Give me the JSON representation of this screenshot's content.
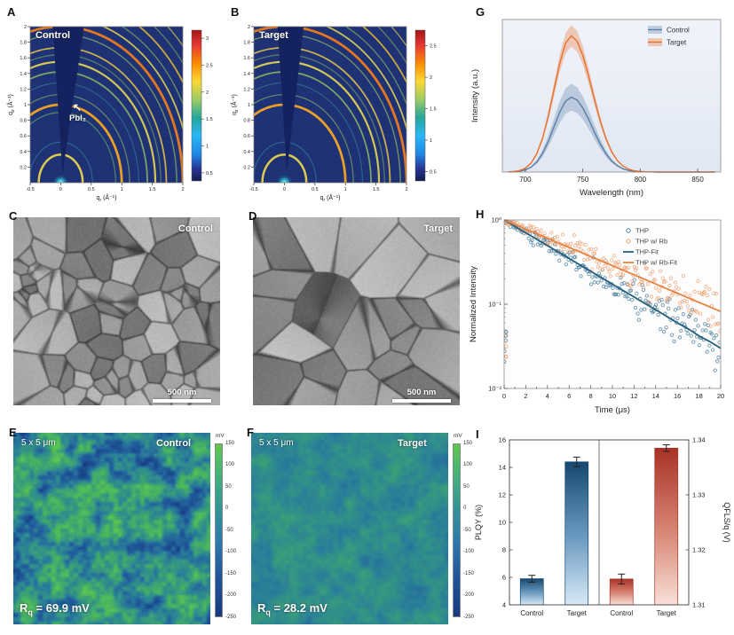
{
  "panelA": {
    "letter": "A",
    "sample_label": "Control",
    "annotation": "PbI₂",
    "axis": {
      "xlabel": {
        "main": "q",
        "sub": "r",
        "unit": " (Å⁻¹)"
      },
      "ylabel": {
        "main": "q",
        "sub": "z",
        "unit": " (Å⁻¹)"
      },
      "xticks": [
        -0.5,
        0,
        0.5,
        1,
        1.5,
        2
      ],
      "yticks": [
        0.2,
        0.4,
        0.6,
        0.8,
        1,
        1.2,
        1.4,
        1.6,
        1.8,
        2
      ]
    },
    "colorbar": {
      "ticks": [
        0.5,
        1,
        1.5,
        2,
        2.5,
        3
      ],
      "vmin": 0.35,
      "vmax": 3.15
    }
  },
  "panelB": {
    "letter": "B",
    "sample_label": "Target",
    "axis": {
      "xlabel": {
        "main": "q",
        "sub": "r",
        "unit": " (Å⁻¹)"
      },
      "ylabel": {
        "main": "q",
        "sub": "z",
        "unit": " (Å⁻¹)"
      },
      "xticks": [
        -0.5,
        0,
        0.5,
        1,
        1.5,
        2
      ],
      "yticks": [
        0.2,
        0.4,
        0.6,
        0.8,
        1,
        1.2,
        1.4,
        1.6,
        1.8,
        2
      ]
    },
    "colorbar": {
      "ticks": [
        0.5,
        1,
        1.5,
        2,
        2.5
      ],
      "vmin": 0.35,
      "vmax": 2.75
    }
  },
  "panelC": {
    "letter": "C",
    "sample_label": "Control",
    "scalebar": "500 nm"
  },
  "panelD": {
    "letter": "D",
    "sample_label": "Target",
    "scalebar": "500 nm"
  },
  "panelE": {
    "letter": "E",
    "size_label": "5 x 5 μm",
    "sample_label": "Control",
    "rq": {
      "prefix": "R",
      "sub": "q",
      "value": " = 69.9 mV"
    },
    "colorbar": {
      "unit": "mV",
      "ticks": [
        150,
        100,
        50,
        0,
        -50,
        -100,
        -150,
        -200,
        -250
      ],
      "vmax": 150,
      "vmin": -250
    }
  },
  "panelF": {
    "letter": "F",
    "size_label": "5 x 5 μm",
    "sample_label": "Target",
    "rq": {
      "prefix": "R",
      "sub": "q",
      "value": " = 28.2 mV"
    },
    "colorbar": {
      "unit": "mV",
      "ticks": [
        150,
        100,
        50,
        0,
        -50,
        -100,
        -150,
        -200,
        -250
      ],
      "vmax": 150,
      "vmin": -250
    }
  },
  "panelG": {
    "letter": "G"
  },
  "panelH": {
    "letter": "H"
  },
  "panelI": {
    "letter": "I"
  },
  "giwaxs": {
    "bg": "#18276b",
    "wedge_color": "#152260",
    "wedgeA": [
      [
        -0.14,
        2.1
      ],
      [
        0.03,
        0.12
      ],
      [
        0.4,
        2.1
      ]
    ],
    "wedgeB": [
      [
        -0.12,
        2.1
      ],
      [
        0.04,
        0.14
      ],
      [
        0.33,
        2.1
      ]
    ],
    "rings": [
      {
        "r": 0.36,
        "c": "#e8d44d",
        "w": 2.5,
        "o": 0.95
      },
      {
        "r": 0.52,
        "c": "#3fb5a3",
        "w": 1.2,
        "o": 0.4
      },
      {
        "r": 0.9,
        "c": "#7ec15f",
        "w": 1.3,
        "o": 0.55,
        "pbi2": true
      },
      {
        "r": 1.0,
        "c": "#f5a623",
        "w": 2.8,
        "o": 0.95
      },
      {
        "r": 1.13,
        "c": "#8fc45e",
        "w": 1.4,
        "o": 0.55
      },
      {
        "r": 1.28,
        "c": "#3fae9b",
        "w": 1.2,
        "o": 0.4
      },
      {
        "r": 1.42,
        "c": "#a9d05c",
        "w": 1.8,
        "o": 0.7
      },
      {
        "r": 1.55,
        "c": "#f2e34f",
        "w": 2.2,
        "o": 0.85
      },
      {
        "r": 1.64,
        "c": "#8fc45e",
        "w": 1.3,
        "o": 0.5
      },
      {
        "r": 1.73,
        "c": "#f4cf45",
        "w": 1.8,
        "o": 0.8
      },
      {
        "r": 1.9,
        "c": "#a9d05c",
        "w": 1.4,
        "o": 0.6
      },
      {
        "r": 2.0,
        "c": "#ef7c1a",
        "w": 2.8,
        "o": 0.95
      },
      {
        "r": 2.12,
        "c": "#f2e34f",
        "w": 1.8,
        "o": 0.8
      },
      {
        "r": 2.24,
        "c": "#8fc45e",
        "w": 1.4,
        "o": 0.6
      },
      {
        "r": 2.38,
        "c": "#f4c430",
        "w": 1.8,
        "o": 0.8
      },
      {
        "r": 2.52,
        "c": "#a9d05c",
        "w": 1.3,
        "o": 0.5
      },
      {
        "r": 2.66,
        "c": "#f2e34f",
        "w": 1.4,
        "o": 0.6
      }
    ]
  },
  "chart_data": [
    {
      "id": "pl_spectra",
      "type": "line",
      "xlabel": "Wavelength (nm)",
      "ylabel": "Intensity (a.u.)",
      "xlim": [
        680,
        870
      ],
      "ylim": [
        0,
        1.12
      ],
      "xticks": [
        700,
        750,
        800,
        850
      ],
      "legend_position": "top-right",
      "x": [
        685,
        690,
        695,
        700,
        705,
        710,
        715,
        720,
        725,
        730,
        735,
        740,
        745,
        750,
        755,
        760,
        765,
        770,
        775,
        780,
        785,
        790,
        795,
        800,
        805,
        810,
        815,
        820,
        825,
        830,
        835,
        840,
        845,
        850,
        855,
        860,
        865
      ],
      "series": [
        {
          "name": "Control",
          "color": "#5b7ea6",
          "band": 0.18,
          "values": [
            0.001,
            0.002,
            0.006,
            0.016,
            0.036,
            0.074,
            0.137,
            0.226,
            0.334,
            0.441,
            0.52,
            0.55,
            0.529,
            0.471,
            0.389,
            0.296,
            0.21,
            0.137,
            0.083,
            0.047,
            0.024,
            0.012,
            0.005,
            0.002,
            0.001,
            0.001,
            0,
            0,
            0,
            0,
            0,
            0,
            0,
            0,
            0,
            0,
            0
          ]
        },
        {
          "name": "Target",
          "color": "#e8702a",
          "band": 0.08,
          "values": [
            0.001,
            0.004,
            0.011,
            0.029,
            0.066,
            0.135,
            0.249,
            0.411,
            0.607,
            0.801,
            0.946,
            1,
            0.962,
            0.857,
            0.707,
            0.539,
            0.381,
            0.249,
            0.151,
            0.085,
            0.044,
            0.021,
            0.009,
            0.004,
            0.002,
            0.001,
            0,
            0,
            0,
            0,
            0,
            0,
            0,
            0,
            0,
            0,
            0
          ]
        }
      ]
    },
    {
      "id": "trpl_decay",
      "type": "scatter",
      "xlabel": "Time (μs)",
      "ylabel": "Normalized Intensity",
      "xlim": [
        0,
        20
      ],
      "ylog": true,
      "ylim": [
        0.01,
        1
      ],
      "xticks": [
        0,
        2,
        4,
        6,
        8,
        10,
        12,
        14,
        16,
        18,
        20
      ],
      "ytick_values": [
        0.01,
        0.1,
        1
      ],
      "ytick_labels": [
        "10⁻²",
        "10⁻¹",
        "10⁰"
      ],
      "legend_position": "top-right",
      "x_fit": [
        0,
        1,
        2,
        3,
        4,
        5,
        6,
        7,
        8,
        9,
        10,
        11,
        12,
        13,
        14,
        15,
        16,
        17,
        18,
        19,
        20
      ],
      "series": [
        {
          "name": "THP",
          "fit_name": "THP-Fit",
          "color": "#4a7d9b",
          "fit_color": "#25607d",
          "tau_us": 5.7,
          "fit_values": [
            1,
            0.839,
            0.704,
            0.59,
            0.496,
            0.416,
            0.349,
            0.293,
            0.246,
            0.206,
            0.173,
            0.145,
            0.122,
            0.102,
            0.086,
            0.072,
            0.06,
            0.051,
            0.042,
            0.036,
            0.03
          ]
        },
        {
          "name": "THP w/ Rb",
          "fit_name": "THP w/ Rb-Fit",
          "color": "#eda477",
          "fit_color": "#e8833f",
          "tau_us": 8.0,
          "fit_values": [
            1,
            0.882,
            0.779,
            0.687,
            0.607,
            0.535,
            0.472,
            0.417,
            0.368,
            0.325,
            0.287,
            0.253,
            0.223,
            0.197,
            0.174,
            0.153,
            0.135,
            0.119,
            0.105,
            0.093,
            0.082
          ]
        }
      ]
    },
    {
      "id": "plqy_qfls_bars",
      "type": "bar",
      "ylabel_left": "PLQY (%)",
      "ylabel_right": "QFLS/q (V)",
      "ylim_left": [
        4,
        16
      ],
      "ylim_right": [
        1.31,
        1.34
      ],
      "yticks_left": [
        4,
        6,
        8,
        10,
        12,
        14,
        16
      ],
      "yticks_right": [
        1.31,
        1.32,
        1.33,
        1.34
      ],
      "groups": [
        {
          "axis": "left",
          "categories": [
            "Control",
            "Target"
          ],
          "values": [
            5.9,
            14.4
          ],
          "errors": [
            0.25,
            0.35
          ],
          "color_top": "#16486e",
          "color_mid": "#6f9ec4",
          "color_bottom": "#d9e9f5"
        },
        {
          "axis": "right",
          "categories": [
            "Control",
            "Target"
          ],
          "values": [
            1.3147,
            1.3385
          ],
          "errors": [
            0.0009,
            0.0006
          ],
          "color_top": "#a93226",
          "color_mid": "#d98877",
          "color_bottom": "#f8e0d8"
        }
      ]
    }
  ]
}
